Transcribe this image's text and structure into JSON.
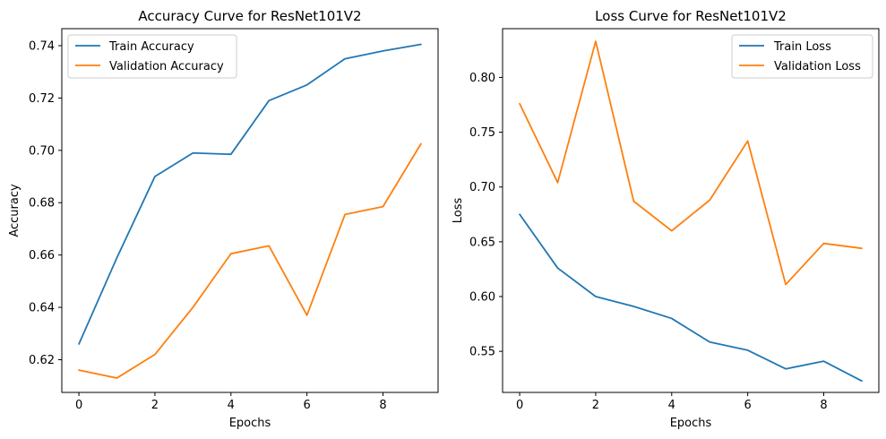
{
  "chart_data": [
    {
      "type": "line",
      "title": "Accuracy Curve for ResNet101V2",
      "xlabel": "Epochs",
      "ylabel": "Accuracy",
      "x": [
        0,
        1,
        2,
        3,
        4,
        5,
        6,
        7,
        8,
        9
      ],
      "xlim": [
        -0.45,
        9.45
      ],
      "ylim": [
        0.6075,
        0.7465
      ],
      "xticks": [
        0,
        2,
        4,
        6,
        8
      ],
      "yticks": [
        0.62,
        0.64,
        0.66,
        0.68,
        0.7,
        0.72,
        0.74
      ],
      "ytick_labels": [
        "0.62",
        "0.64",
        "0.66",
        "0.68",
        "0.70",
        "0.72",
        "0.74"
      ],
      "grid": false,
      "legend_position": "top-left",
      "series": [
        {
          "name": "Train Accuracy",
          "color": "#1f77b4",
          "values": [
            0.626,
            0.659,
            0.69,
            0.699,
            0.6985,
            0.719,
            0.725,
            0.735,
            0.738,
            0.7405
          ]
        },
        {
          "name": "Validation Accuracy",
          "color": "#ff7f0e",
          "values": [
            0.616,
            0.613,
            0.622,
            0.64,
            0.6605,
            0.6635,
            0.637,
            0.6755,
            0.6785,
            0.7025
          ]
        }
      ]
    },
    {
      "type": "line",
      "title": "Loss Curve for ResNet101V2",
      "xlabel": "Epochs",
      "ylabel": "Loss",
      "x": [
        0,
        1,
        2,
        3,
        4,
        5,
        6,
        7,
        8,
        9
      ],
      "xlim": [
        -0.45,
        9.45
      ],
      "ylim": [
        0.5125,
        0.8445
      ],
      "xticks": [
        0,
        2,
        4,
        6,
        8
      ],
      "yticks": [
        0.55,
        0.6,
        0.65,
        0.7,
        0.75,
        0.8
      ],
      "ytick_labels": [
        "0.55",
        "0.60",
        "0.65",
        "0.70",
        "0.75",
        "0.80"
      ],
      "grid": false,
      "legend_position": "top-right",
      "series": [
        {
          "name": "Train Loss",
          "color": "#1f77b4",
          "values": [
            0.675,
            0.626,
            0.6,
            0.591,
            0.58,
            0.5585,
            0.551,
            0.534,
            0.541,
            0.523
          ]
        },
        {
          "name": "Validation Loss",
          "color": "#ff7f0e",
          "values": [
            0.776,
            0.704,
            0.833,
            0.687,
            0.66,
            0.688,
            0.742,
            0.611,
            0.6485,
            0.644
          ]
        }
      ]
    }
  ]
}
